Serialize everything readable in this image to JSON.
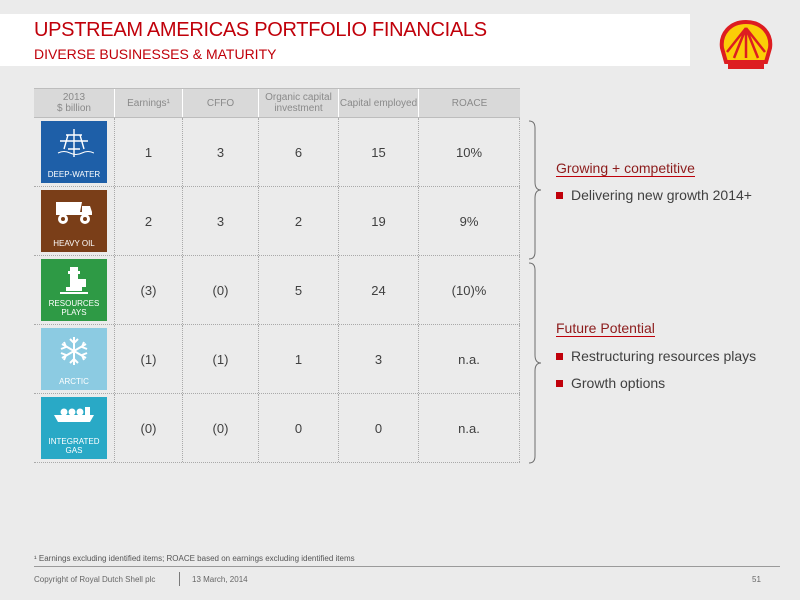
{
  "header": {
    "title": "UPSTREAM AMERICAS PORTFOLIO FINANCIALS",
    "subtitle": "DIVERSE BUSINESSES & MATURITY"
  },
  "brand": {
    "logo_icon": "shell-pecten-icon",
    "red": "#dd1d21",
    "yellow": "#fbce07"
  },
  "table": {
    "year": "2013",
    "unit": "$ billion",
    "columns": [
      "Earnings¹",
      "CFFO",
      "Organic capital investment",
      "Capital employed",
      "ROACE"
    ],
    "rows": [
      {
        "segment": "DEEP-WATER",
        "icon": "oil-rig-icon",
        "color": "#1e5fa8",
        "values": [
          "1",
          "3",
          "6",
          "15",
          "10%"
        ]
      },
      {
        "segment": "HEAVY OIL",
        "icon": "dump-truck-icon",
        "color": "#7a3e18",
        "values": [
          "2",
          "3",
          "2",
          "19",
          "9%"
        ]
      },
      {
        "segment": "RESOURCES PLAYS",
        "icon": "drilling-tower-icon",
        "color": "#2e9a45",
        "values": [
          "(3)",
          "(0)",
          "5",
          "24",
          "(10)%"
        ]
      },
      {
        "segment": "ARCTIC",
        "icon": "snowflake-icon",
        "color": "#8ccbe2",
        "values": [
          "(1)",
          "(1)",
          "1",
          "3",
          "n.a."
        ]
      },
      {
        "segment": "INTEGRATED GAS",
        "icon": "lng-ship-icon",
        "color": "#29a9c6",
        "values": [
          "(0)",
          "(0)",
          "0",
          "0",
          "n.a."
        ]
      }
    ]
  },
  "side": {
    "group1": {
      "heading": "Growing + competitive",
      "bullets": [
        "Delivering new growth 2014+"
      ]
    },
    "group2": {
      "heading": "Future Potential",
      "bullets": [
        "Restructuring resources plays",
        "Growth options"
      ]
    }
  },
  "footnote": "¹ Earnings excluding identified items; ROACE based on earnings excluding identified items",
  "footer": {
    "copyright": "Copyright of Royal Dutch Shell plc",
    "date": "13 March, 2014",
    "page": "51"
  }
}
